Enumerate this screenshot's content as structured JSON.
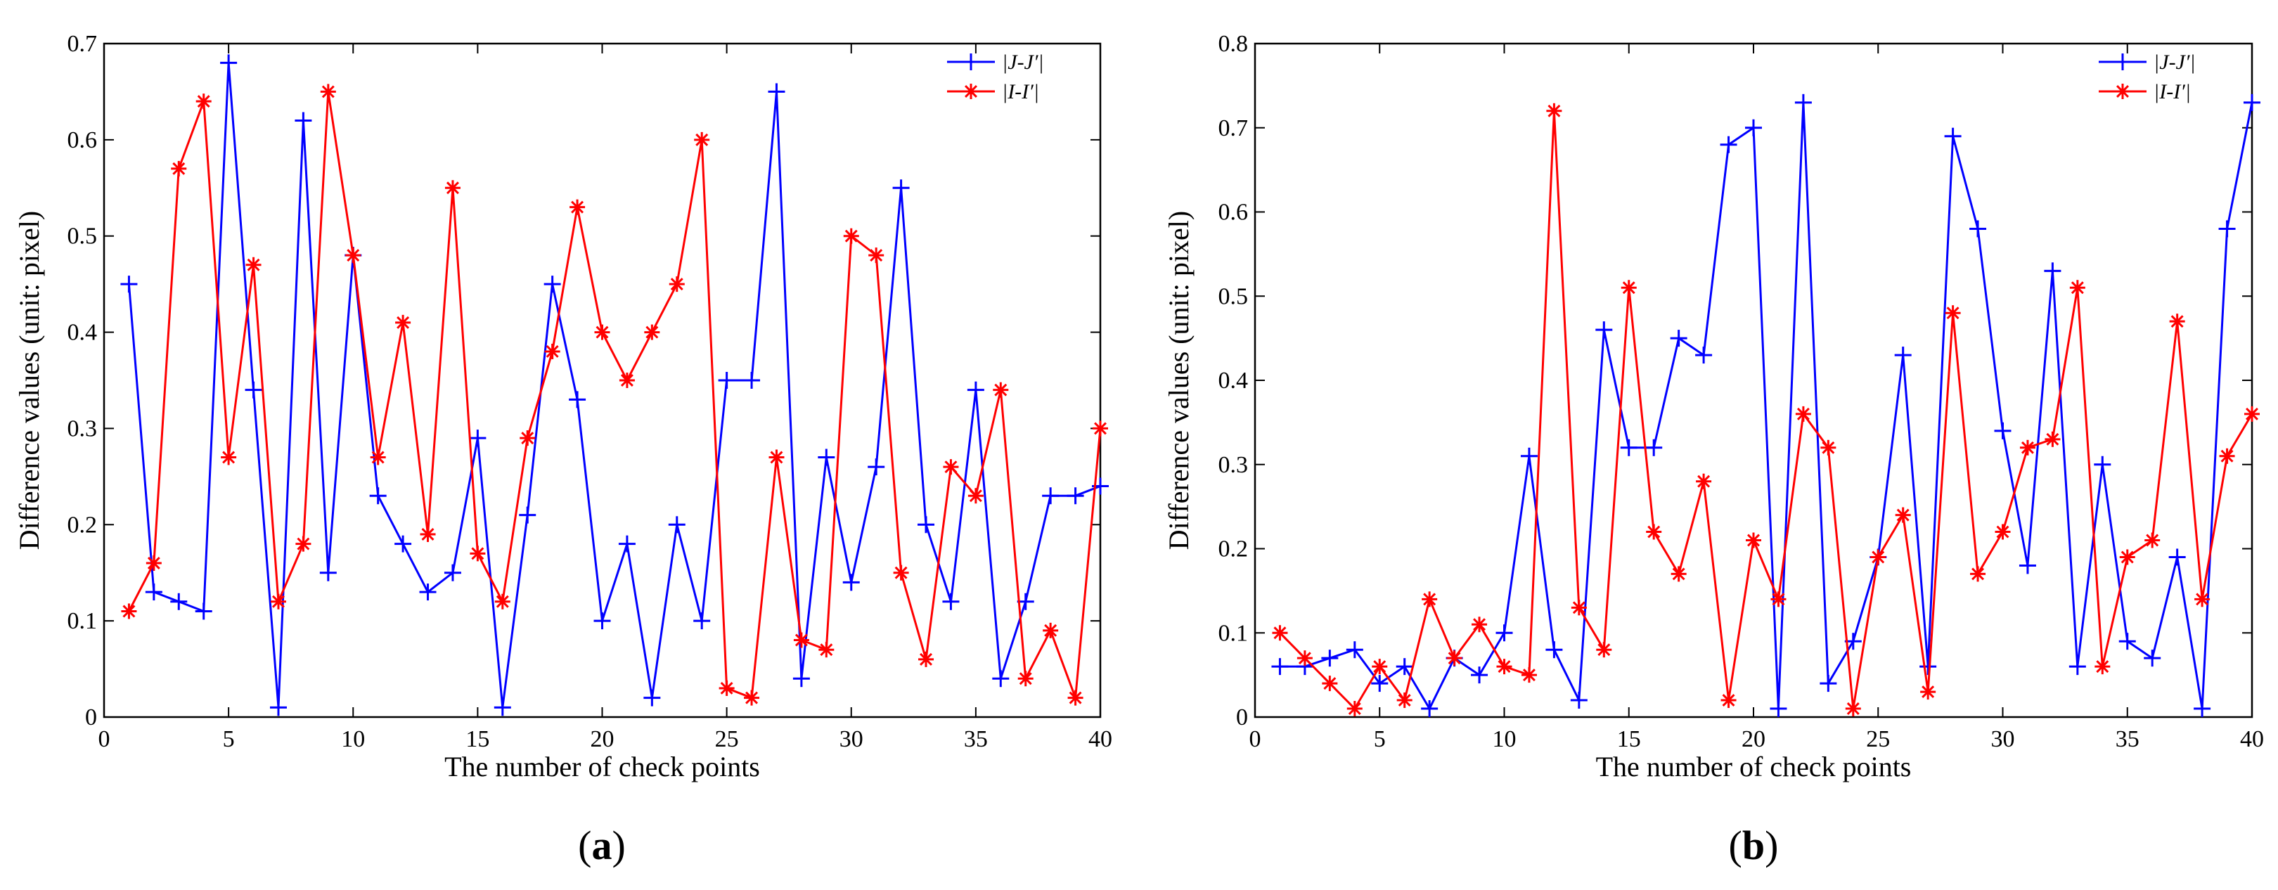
{
  "chart_data": [
    {
      "type": "line",
      "panel": "a",
      "panel_label": "a",
      "xlabel": "The number of check points",
      "ylabel": "Difference values (unit: pixel)",
      "xlim": [
        0,
        40
      ],
      "ylim": [
        0,
        0.7
      ],
      "xticks": [
        "0",
        "5",
        "10",
        "15",
        "20",
        "25",
        "30",
        "35",
        "40"
      ],
      "yticks": [
        "0",
        "0.1",
        "0.2",
        "0.3",
        "0.4",
        "0.5",
        "0.6",
        "0.7"
      ],
      "legend_position": "top-right",
      "x": [
        1,
        2,
        3,
        4,
        5,
        6,
        7,
        8,
        9,
        10,
        11,
        12,
        13,
        14,
        15,
        16,
        17,
        18,
        19,
        20,
        21,
        22,
        23,
        24,
        25,
        26,
        27,
        28,
        29,
        30,
        31,
        32,
        33,
        34,
        35,
        36,
        37,
        38,
        39,
        40
      ],
      "series": [
        {
          "name": "|J-J′|",
          "color": "#0000ff",
          "marker": "plus",
          "values": [
            0.45,
            0.13,
            0.12,
            0.11,
            0.68,
            0.34,
            0.01,
            0.62,
            0.15,
            0.48,
            0.23,
            0.18,
            0.13,
            0.15,
            0.29,
            0.01,
            0.21,
            0.45,
            0.33,
            0.1,
            0.18,
            0.02,
            0.2,
            0.1,
            0.35,
            0.35,
            0.65,
            0.04,
            0.27,
            0.14,
            0.26,
            0.55,
            0.2,
            0.12,
            0.34,
            0.04,
            0.12,
            0.23,
            0.23,
            0.24
          ]
        },
        {
          "name": "|I-I′|",
          "color": "#ff0000",
          "marker": "asterisk",
          "values": [
            0.11,
            0.16,
            0.57,
            0.64,
            0.27,
            0.47,
            0.12,
            0.18,
            0.65,
            0.48,
            0.27,
            0.41,
            0.19,
            0.55,
            0.17,
            0.12,
            0.29,
            0.38,
            0.53,
            0.4,
            0.35,
            0.4,
            0.45,
            0.6,
            0.03,
            0.02,
            0.27,
            0.08,
            0.07,
            0.5,
            0.48,
            0.15,
            0.06,
            0.26,
            0.23,
            0.34,
            0.04,
            0.09,
            0.02,
            0.3
          ]
        }
      ]
    },
    {
      "type": "line",
      "panel": "b",
      "panel_label": "b",
      "xlabel": "The number of check points",
      "ylabel": "Difference values (unit: pixel)",
      "xlim": [
        0,
        40
      ],
      "ylim": [
        0,
        0.8
      ],
      "xticks": [
        "0",
        "5",
        "10",
        "15",
        "20",
        "25",
        "30",
        "35",
        "40"
      ],
      "yticks": [
        "0",
        "0.1",
        "0.2",
        "0.3",
        "0.4",
        "0.5",
        "0.6",
        "0.7",
        "0.8"
      ],
      "legend_position": "top-right",
      "x": [
        1,
        2,
        3,
        4,
        5,
        6,
        7,
        8,
        9,
        10,
        11,
        12,
        13,
        14,
        15,
        16,
        17,
        18,
        19,
        20,
        21,
        22,
        23,
        24,
        25,
        26,
        27,
        28,
        29,
        30,
        31,
        32,
        33,
        34,
        35,
        36,
        37,
        38,
        39,
        40
      ],
      "series": [
        {
          "name": "|J-J′|",
          "color": "#0000ff",
          "marker": "plus",
          "values": [
            0.06,
            0.06,
            0.07,
            0.08,
            0.04,
            0.06,
            0.01,
            0.07,
            0.05,
            0.1,
            0.31,
            0.08,
            0.02,
            0.46,
            0.32,
            0.32,
            0.45,
            0.43,
            0.68,
            0.7,
            0.01,
            0.73,
            0.04,
            0.09,
            0.19,
            0.43,
            0.06,
            0.69,
            0.58,
            0.34,
            0.18,
            0.53,
            0.06,
            0.3,
            0.09,
            0.07,
            0.19,
            0.01,
            0.58,
            0.73
          ]
        },
        {
          "name": "|I-I′|",
          "color": "#ff0000",
          "marker": "asterisk",
          "values": [
            0.1,
            0.07,
            0.04,
            0.01,
            0.06,
            0.02,
            0.14,
            0.07,
            0.11,
            0.06,
            0.05,
            0.72,
            0.13,
            0.08,
            0.51,
            0.22,
            0.17,
            0.28,
            0.02,
            0.21,
            0.14,
            0.36,
            0.32,
            0.01,
            0.19,
            0.24,
            0.03,
            0.48,
            0.17,
            0.22,
            0.32,
            0.33,
            0.51,
            0.06,
            0.19,
            0.21,
            0.47,
            0.14,
            0.31,
            0.36
          ]
        }
      ]
    }
  ]
}
